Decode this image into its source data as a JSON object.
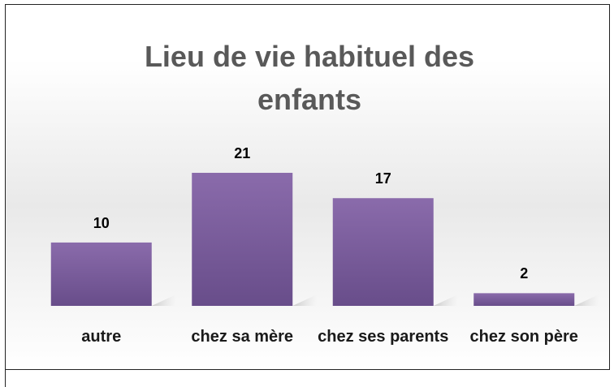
{
  "chart_data": {
    "type": "bar",
    "title": "Lieu de vie habituel des enfants",
    "categories": [
      "autre",
      "chez sa mère",
      "chez ses parents",
      "chez son père"
    ],
    "values": [
      10,
      21,
      17,
      2
    ],
    "color": "#7b5fa0"
  }
}
